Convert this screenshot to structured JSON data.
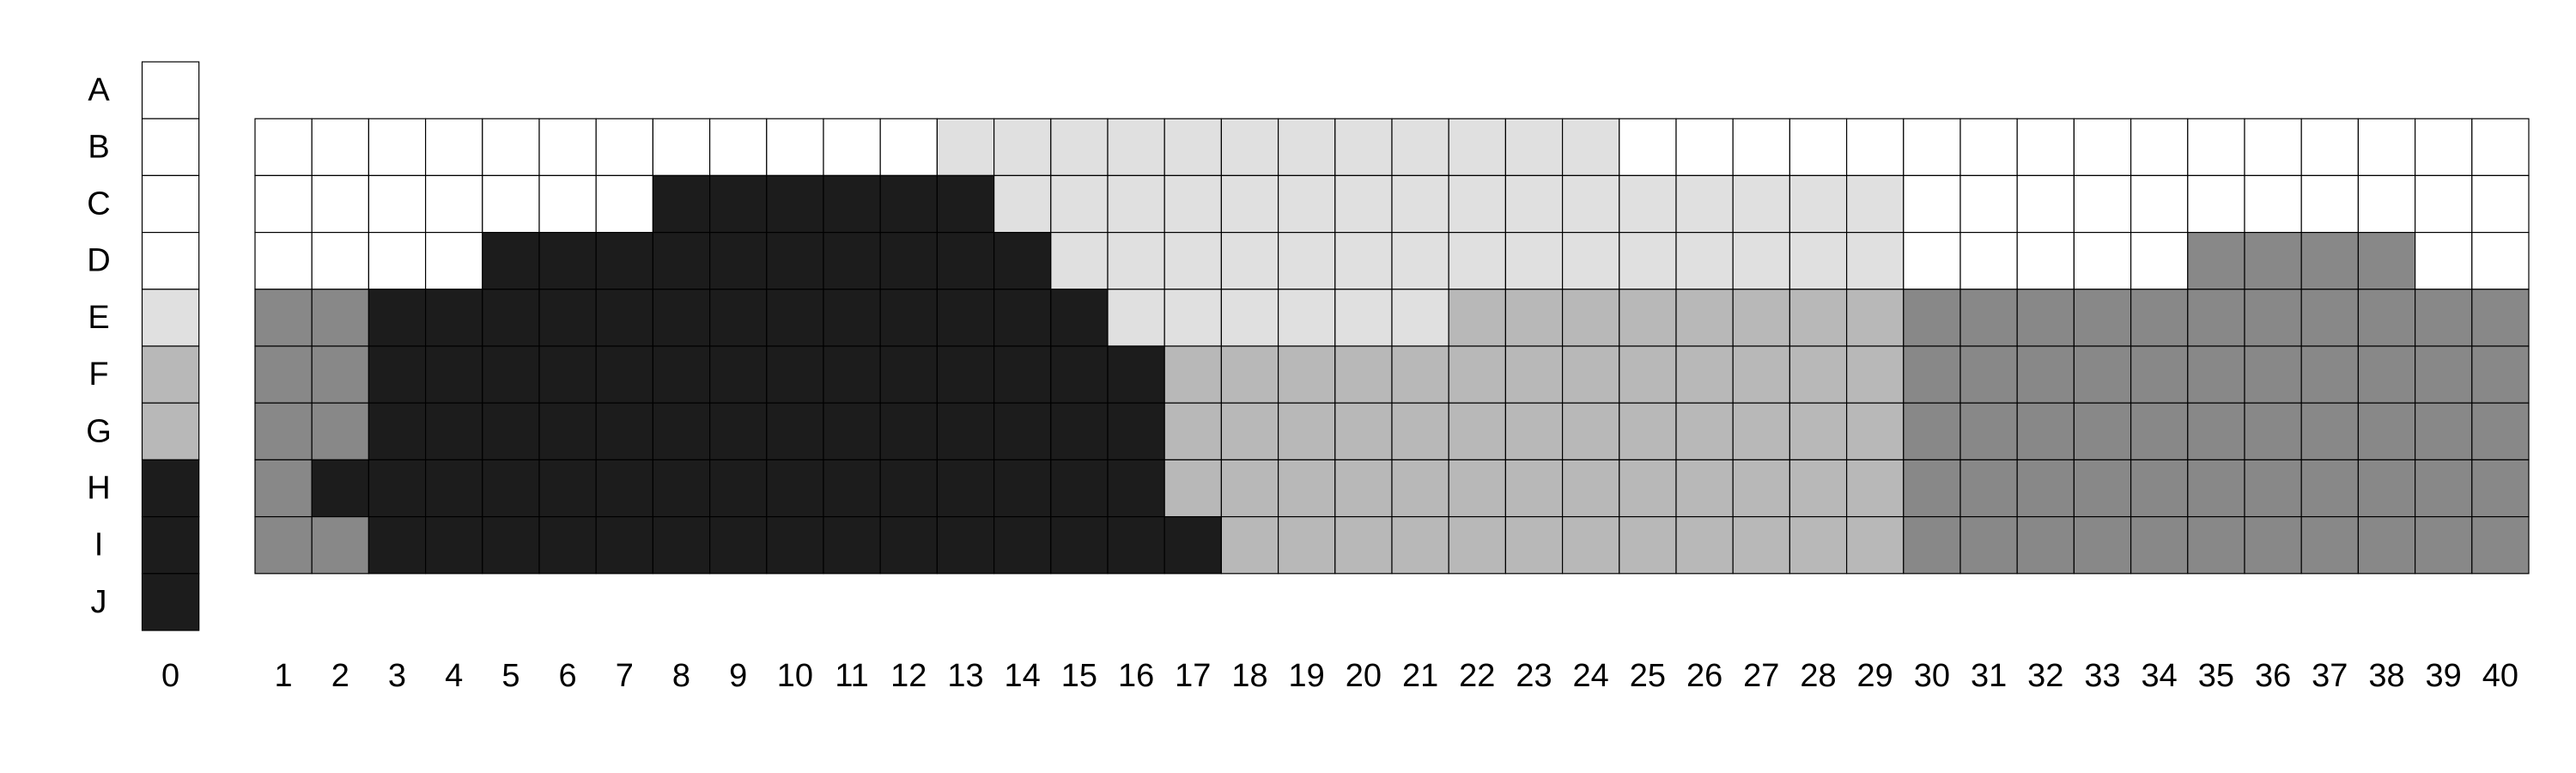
{
  "chart_data": {
    "type": "heatmap",
    "title": "",
    "xlabel": "",
    "ylabel": "",
    "row_labels": [
      "A",
      "B",
      "C",
      "D",
      "E",
      "F",
      "G",
      "H",
      "I",
      "J"
    ],
    "column_labels": [
      "0",
      "1",
      "2",
      "3",
      "4",
      "5",
      "6",
      "7",
      "8",
      "9",
      "10",
      "11",
      "12",
      "13",
      "14",
      "15",
      "16",
      "17",
      "18",
      "19",
      "20",
      "21",
      "22",
      "23",
      "24",
      "25",
      "26",
      "27",
      "28",
      "29",
      "30",
      "31",
      "32",
      "33",
      "34",
      "35",
      "36",
      "37",
      "38",
      "39",
      "40"
    ],
    "color_key": {
      "W": "#ffffff",
      "L": "#e0e0e0",
      "M": "#b8b8b8",
      "D": "#888888",
      "K": "#1c1c1c"
    },
    "reference_column": {
      "label": "0",
      "rows": [
        "A",
        "B",
        "C",
        "D",
        "E",
        "F",
        "G",
        "H",
        "I",
        "J"
      ],
      "values": [
        "W",
        "W",
        "W",
        "W",
        "L",
        "M",
        "M",
        "K",
        "K",
        "K"
      ]
    },
    "grid": {
      "rows": [
        "B",
        "C",
        "D",
        "E",
        "F",
        "G",
        "H",
        "I"
      ],
      "columns": [
        "1",
        "2",
        "3",
        "4",
        "5",
        "6",
        "7",
        "8",
        "9",
        "10",
        "11",
        "12",
        "13",
        "14",
        "15",
        "16",
        "17",
        "18",
        "19",
        "20",
        "21",
        "22",
        "23",
        "24",
        "25",
        "26",
        "27",
        "28",
        "29",
        "30",
        "31",
        "32",
        "33",
        "34",
        "35",
        "36",
        "37",
        "38",
        "39",
        "40"
      ],
      "values": [
        [
          "W",
          "W",
          "W",
          "W",
          "W",
          "W",
          "W",
          "W",
          "W",
          "W",
          "W",
          "W",
          "L",
          "L",
          "L",
          "L",
          "L",
          "L",
          "L",
          "L",
          "L",
          "L",
          "L",
          "L",
          "W",
          "W",
          "W",
          "W",
          "W",
          "W",
          "W",
          "W",
          "W",
          "W",
          "W",
          "W",
          "W",
          "W",
          "W",
          "W"
        ],
        [
          "W",
          "W",
          "W",
          "W",
          "W",
          "W",
          "W",
          "K",
          "K",
          "K",
          "K",
          "K",
          "K",
          "L",
          "L",
          "L",
          "L",
          "L",
          "L",
          "L",
          "L",
          "L",
          "L",
          "L",
          "L",
          "L",
          "L",
          "L",
          "L",
          "W",
          "W",
          "W",
          "W",
          "W",
          "W",
          "W",
          "W",
          "W",
          "W",
          "W"
        ],
        [
          "W",
          "W",
          "W",
          "W",
          "K",
          "K",
          "K",
          "K",
          "K",
          "K",
          "K",
          "K",
          "K",
          "K",
          "L",
          "L",
          "L",
          "L",
          "L",
          "L",
          "L",
          "L",
          "L",
          "L",
          "L",
          "L",
          "L",
          "L",
          "L",
          "W",
          "W",
          "W",
          "W",
          "W",
          "D",
          "D",
          "D",
          "D",
          "W",
          "W"
        ],
        [
          "D",
          "D",
          "K",
          "K",
          "K",
          "K",
          "K",
          "K",
          "K",
          "K",
          "K",
          "K",
          "K",
          "K",
          "K",
          "L",
          "L",
          "L",
          "L",
          "L",
          "L",
          "M",
          "M",
          "M",
          "M",
          "M",
          "M",
          "M",
          "M",
          "D",
          "D",
          "D",
          "D",
          "D",
          "D",
          "D",
          "D",
          "D",
          "D",
          "D"
        ],
        [
          "D",
          "D",
          "K",
          "K",
          "K",
          "K",
          "K",
          "K",
          "K",
          "K",
          "K",
          "K",
          "K",
          "K",
          "K",
          "K",
          "M",
          "M",
          "M",
          "M",
          "M",
          "M",
          "M",
          "M",
          "M",
          "M",
          "M",
          "M",
          "M",
          "D",
          "D",
          "D",
          "D",
          "D",
          "D",
          "D",
          "D",
          "D",
          "D",
          "D"
        ],
        [
          "D",
          "D",
          "K",
          "K",
          "K",
          "K",
          "K",
          "K",
          "K",
          "K",
          "K",
          "K",
          "K",
          "K",
          "K",
          "K",
          "M",
          "M",
          "M",
          "M",
          "M",
          "M",
          "M",
          "M",
          "M",
          "M",
          "M",
          "M",
          "M",
          "D",
          "D",
          "D",
          "D",
          "D",
          "D",
          "D",
          "D",
          "D",
          "D",
          "D"
        ],
        [
          "D",
          "K",
          "K",
          "K",
          "K",
          "K",
          "K",
          "K",
          "K",
          "K",
          "K",
          "K",
          "K",
          "K",
          "K",
          "K",
          "M",
          "M",
          "M",
          "M",
          "M",
          "M",
          "M",
          "M",
          "M",
          "M",
          "M",
          "M",
          "M",
          "D",
          "D",
          "D",
          "D",
          "D",
          "D",
          "D",
          "D",
          "D",
          "D",
          "D"
        ],
        [
          "D",
          "D",
          "K",
          "K",
          "K",
          "K",
          "K",
          "K",
          "K",
          "K",
          "K",
          "K",
          "K",
          "K",
          "K",
          "K",
          "K",
          "M",
          "M",
          "M",
          "M",
          "M",
          "M",
          "M",
          "M",
          "M",
          "M",
          "M",
          "M",
          "D",
          "D",
          "D",
          "D",
          "D",
          "D",
          "D",
          "D",
          "D",
          "D",
          "D"
        ]
      ]
    }
  }
}
